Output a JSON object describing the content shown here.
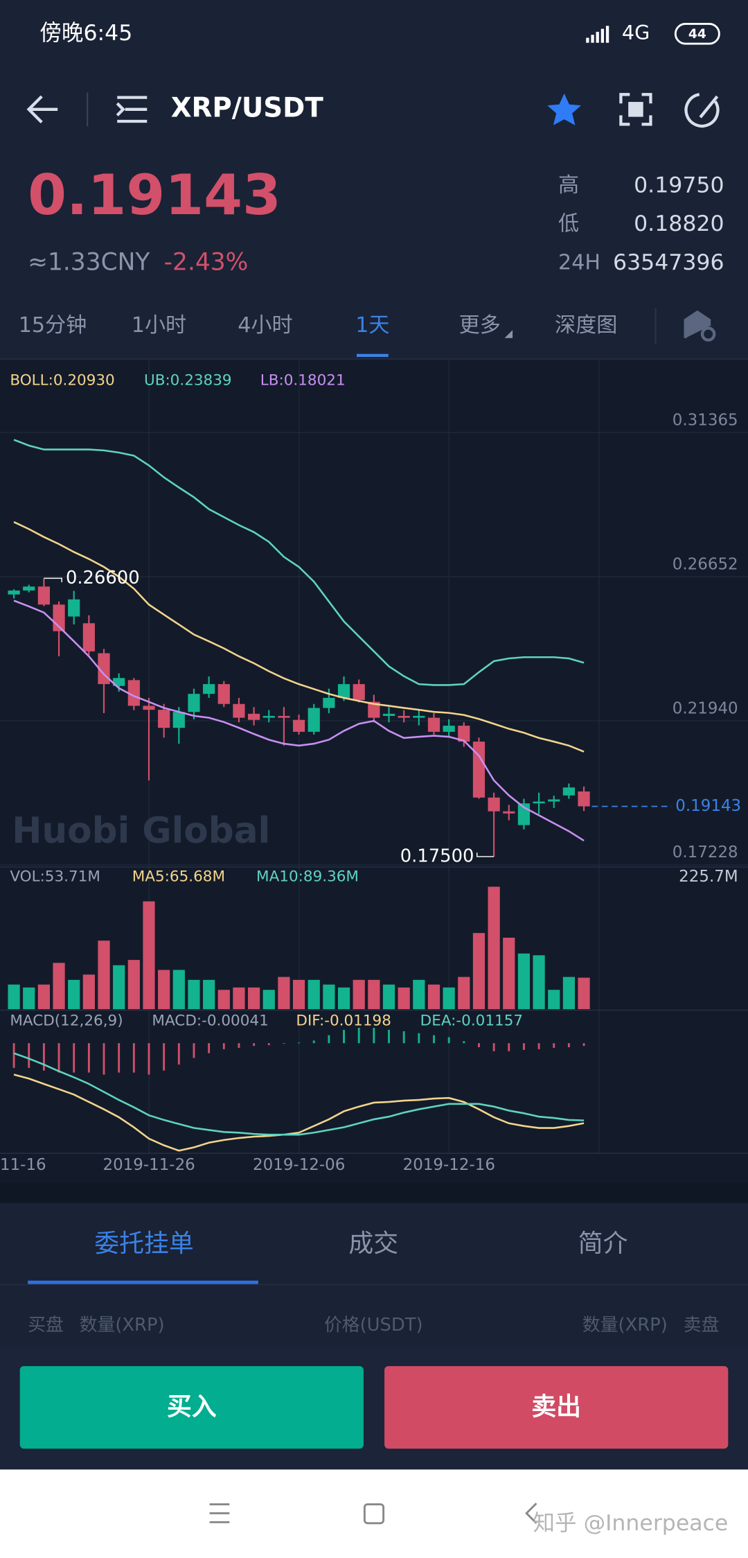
{
  "status_bar": {
    "time": "傍晚6:45",
    "network": "4G",
    "battery": "44"
  },
  "header": {
    "pair": "XRP/USDT"
  },
  "ticker": {
    "price": "0.19143",
    "cny": "≈1.33CNY",
    "change": "-2.43%",
    "stats": [
      {
        "label": "高",
        "value": "0.19750"
      },
      {
        "label": "低",
        "value": "0.18820"
      },
      {
        "label": "24H",
        "value": "63547396"
      }
    ]
  },
  "intervals": {
    "items": [
      "15分钟",
      "1小时",
      "4小时",
      "1天",
      "更多",
      "深度图"
    ],
    "active": 3
  },
  "chart_data": [
    {
      "type": "candlestick",
      "up_color": "#13b38f",
      "down_color": "#d2506a",
      "open": [
        0.2607,
        0.262,
        0.2633,
        0.2574,
        0.2535,
        0.2513,
        0.2415,
        0.2308,
        0.2327,
        0.2243,
        0.223,
        0.2171,
        0.2223,
        0.2282,
        0.2314,
        0.2249,
        0.2217,
        0.2204,
        0.221,
        0.2197,
        0.2158,
        0.2236,
        0.2269,
        0.2314,
        0.2256,
        0.221,
        0.221,
        0.2204,
        0.2204,
        0.2158,
        0.2178,
        0.2126,
        0.1943,
        0.1898,
        0.1853,
        0.1924,
        0.193,
        0.195,
        0.1963
      ],
      "high": [
        0.2624,
        0.2639,
        0.266,
        0.2584,
        0.2619,
        0.2539,
        0.2429,
        0.2349,
        0.2334,
        0.2269,
        0.2249,
        0.2239,
        0.2299,
        0.2339,
        0.2324,
        0.2269,
        0.2239,
        0.2229,
        0.2239,
        0.2214,
        0.2249,
        0.2299,
        0.2339,
        0.2329,
        0.2279,
        0.2239,
        0.2229,
        0.2229,
        0.2219,
        0.2199,
        0.2189,
        0.2139,
        0.1959,
        0.1919,
        0.1939,
        0.1959,
        0.1949,
        0.1989,
        0.1979
      ],
      "low": [
        0.2594,
        0.2614,
        0.2569,
        0.2405,
        0.2509,
        0.2409,
        0.2219,
        0.2289,
        0.2229,
        0.1999,
        0.2139,
        0.2119,
        0.2199,
        0.2269,
        0.2239,
        0.2189,
        0.2179,
        0.2189,
        0.2113,
        0.2149,
        0.2149,
        0.2219,
        0.2259,
        0.2254,
        0.2189,
        0.2189,
        0.2189,
        0.2179,
        0.2149,
        0.2139,
        0.2109,
        0.1939,
        0.175,
        0.1869,
        0.1839,
        0.1889,
        0.1909,
        0.1939,
        0.1899
      ],
      "close": [
        0.262,
        0.2633,
        0.2574,
        0.2487,
        0.2591,
        0.2421,
        0.2314,
        0.2334,
        0.2243,
        0.223,
        0.2171,
        0.2223,
        0.2282,
        0.2314,
        0.2249,
        0.2204,
        0.2197,
        0.221,
        0.2204,
        0.2158,
        0.2236,
        0.2269,
        0.2314,
        0.2262,
        0.2204,
        0.2217,
        0.2204,
        0.221,
        0.2158,
        0.2178,
        0.2126,
        0.1943,
        0.1898,
        0.1891,
        0.1924,
        0.193,
        0.1937,
        0.1976,
        0.19143
      ],
      "series": [
        {
          "name": "BOLL:0.20930",
          "color": "#f3d48c",
          "values": [
            0.2844,
            0.2821,
            0.2795,
            0.2772,
            0.2746,
            0.2723,
            0.2697,
            0.2665,
            0.2626,
            0.2574,
            0.2541,
            0.2509,
            0.2476,
            0.2454,
            0.2431,
            0.2405,
            0.2382,
            0.2356,
            0.2333,
            0.2314,
            0.2298,
            0.2282,
            0.2269,
            0.2259,
            0.2249,
            0.2243,
            0.2236,
            0.223,
            0.2223,
            0.222,
            0.2213,
            0.22,
            0.2184,
            0.2168,
            0.2155,
            0.2138,
            0.2126,
            0.2113,
            0.2093
          ]
        },
        {
          "name": "UB:0.23839",
          "color": "#5fd3bf",
          "values": [
            0.3113,
            0.3094,
            0.3081,
            0.3081,
            0.3081,
            0.3081,
            0.3078,
            0.3071,
            0.3061,
            0.3029,
            0.299,
            0.2957,
            0.2925,
            0.2886,
            0.286,
            0.2834,
            0.2811,
            0.2779,
            0.273,
            0.2697,
            0.2649,
            0.2584,
            0.2519,
            0.247,
            0.2421,
            0.2372,
            0.234,
            0.2314,
            0.2311,
            0.2311,
            0.2314,
            0.2353,
            0.2389,
            0.2398,
            0.2402,
            0.2402,
            0.2402,
            0.2398,
            0.23839
          ]
        },
        {
          "name": "LB:0.18021",
          "color": "#c88ff2",
          "values": [
            0.2587,
            0.2568,
            0.2548,
            0.2502,
            0.2454,
            0.2405,
            0.2346,
            0.2301,
            0.2275,
            0.2256,
            0.2236,
            0.2223,
            0.221,
            0.2204,
            0.219,
            0.2171,
            0.2151,
            0.2132,
            0.2119,
            0.2113,
            0.2119,
            0.2132,
            0.2161,
            0.2184,
            0.2194,
            0.2161,
            0.2138,
            0.2142,
            0.2145,
            0.2142,
            0.2129,
            0.208,
            0.1999,
            0.195,
            0.1911,
            0.1885,
            0.1859,
            0.1833,
            0.18021
          ]
        }
      ],
      "ylim": [
        0.1716,
        0.3374
      ],
      "yticks": [
        0.31365,
        0.26652,
        {
          "value": 0.2194,
          "label": "0.21940"
        },
        0.17228
      ],
      "high_label": {
        "value": 0.266,
        "label": "0.26600"
      },
      "low_label": {
        "value": 0.175,
        "label": "0.17500"
      },
      "last_price": {
        "value": 0.19143,
        "label": "0.19143"
      },
      "xticks": [
        "11-16",
        "2019-11-26",
        "2019-12-06",
        "2019-12-16"
      ],
      "watermark": "Huobi Global"
    },
    {
      "type": "bar",
      "name": "VOL:53.71M",
      "legend": [
        "MA5:65.68M",
        "MA10:89.36M"
      ],
      "values": [
        42,
        37,
        42,
        79,
        50,
        59,
        117,
        75,
        84,
        184,
        67,
        67,
        50,
        50,
        33,
        37,
        37,
        33,
        55,
        50,
        50,
        42,
        37,
        50,
        50,
        42,
        37,
        50,
        42,
        37,
        55,
        130,
        209,
        122,
        95,
        92,
        33,
        55,
        53.71
      ],
      "ylim": [
        0,
        225.7
      ],
      "yticks": [
        {
          "value": 225.7,
          "label": "225.7M"
        }
      ]
    },
    {
      "type": "macd",
      "legend": [
        "MACD(12,26,9)",
        "MACD:-0.00041"
      ],
      "values": [
        -0.0037,
        -0.0037,
        -0.0041,
        -0.0044,
        -0.0044,
        -0.0044,
        -0.0047,
        -0.0044,
        -0.0044,
        -0.0047,
        -0.0041,
        -0.0032,
        -0.0022,
        -0.0015,
        -0.0009,
        -0.0007,
        -0.0004,
        -0.0003,
        -0.0001,
        0.0001,
        0.0004,
        0.0012,
        0.002,
        0.0023,
        0.0023,
        0.002,
        0.0018,
        0.0015,
        0.0012,
        0.0009,
        0.0003,
        -0.0006,
        -0.0012,
        -0.0012,
        -0.001,
        -0.0009,
        -0.0007,
        -0.0006,
        -0.00041
      ],
      "series": [
        {
          "name": "DIF:-0.01198",
          "color": "#f3d48c",
          "values": [
            -0.0047,
            -0.0053,
            -0.0061,
            -0.0069,
            -0.0077,
            -0.0088,
            -0.0099,
            -0.0111,
            -0.0126,
            -0.0143,
            -0.0153,
            -0.0161,
            -0.0156,
            -0.0149,
            -0.0145,
            -0.0142,
            -0.014,
            -0.0139,
            -0.0137,
            -0.0134,
            -0.0124,
            -0.0114,
            -0.0102,
            -0.0095,
            -0.0089,
            -0.0088,
            -0.0086,
            -0.0085,
            -0.0083,
            -0.0082,
            -0.0088,
            -0.0099,
            -0.0111,
            -0.012,
            -0.0124,
            -0.0127,
            -0.0127,
            -0.0124,
            -0.01198
          ]
        },
        {
          "name": "DEA:-0.01157",
          "color": "#5fd3bf",
          "values": [
            -0.0015,
            -0.0023,
            -0.0032,
            -0.0042,
            -0.0051,
            -0.0061,
            -0.0073,
            -0.0085,
            -0.0096,
            -0.0108,
            -0.0115,
            -0.0121,
            -0.0127,
            -0.013,
            -0.0133,
            -0.0134,
            -0.0136,
            -0.0137,
            -0.0137,
            -0.0137,
            -0.0134,
            -0.013,
            -0.0126,
            -0.012,
            -0.0114,
            -0.011,
            -0.0104,
            -0.0099,
            -0.0095,
            -0.0091,
            -0.0091,
            -0.0091,
            -0.0095,
            -0.0101,
            -0.0105,
            -0.011,
            -0.0112,
            -0.0115,
            -0.01157
          ]
        }
      ],
      "ylim": [
        -0.0165,
        0.0048
      ]
    }
  ],
  "orders": {
    "tabs": [
      "委托挂单",
      "成交",
      "简介"
    ],
    "active": 0,
    "columns": [
      "买盘",
      "数量(XRP)",
      "价格(USDT)",
      "数量(XRP)",
      "卖盘"
    ]
  },
  "actions": [
    "买入",
    "卖出"
  ],
  "watermark": "知乎 @Innerpeace"
}
